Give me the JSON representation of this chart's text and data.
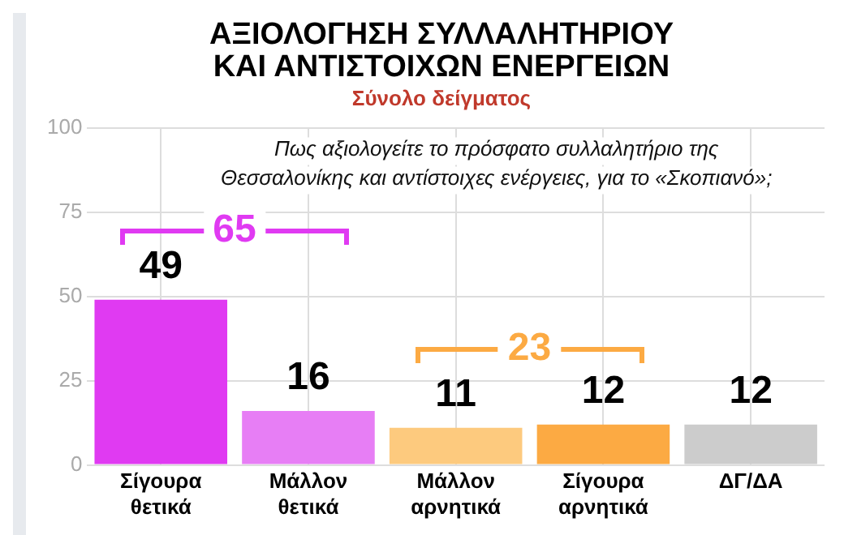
{
  "chart_data": {
    "type": "bar",
    "title": "ΑΞΙΟΛΟΓΗΣΗ ΣΥΛΛΑΛΗΤΗΡΙΟΥ ΚΑΙ ΑΝΤΙΣΤΟΙΧΩΝ ΕΝΕΡΓΕΙΩΝ",
    "subtitle": "Σύνολο δείγματος",
    "categories": [
      "Σίγουρα θετικά",
      "Μάλλον θετικά",
      "Μάλλον αρνητικά",
      "Σίγουρα αρνητικά",
      "ΔΓ/ΔΑ"
    ],
    "values": [
      49,
      16,
      11,
      12,
      12
    ],
    "colors": [
      "#e03af2",
      "#e77ef5",
      "#fdca7e",
      "#fcaa43",
      "#cccccc"
    ],
    "ylim": [
      0,
      100
    ],
    "yticks": [
      0,
      25,
      50,
      75,
      100
    ],
    "grid": true,
    "legend": false,
    "data_labels": true,
    "annotations": [
      "Πως αξιολογείτε το πρόσφατο συλλαλητήριο της Θεσσαλονίκης και αντίστοιχες ενέργειες, για το «Σκοπιανό»;",
      "65",
      "23"
    ]
  }
}
